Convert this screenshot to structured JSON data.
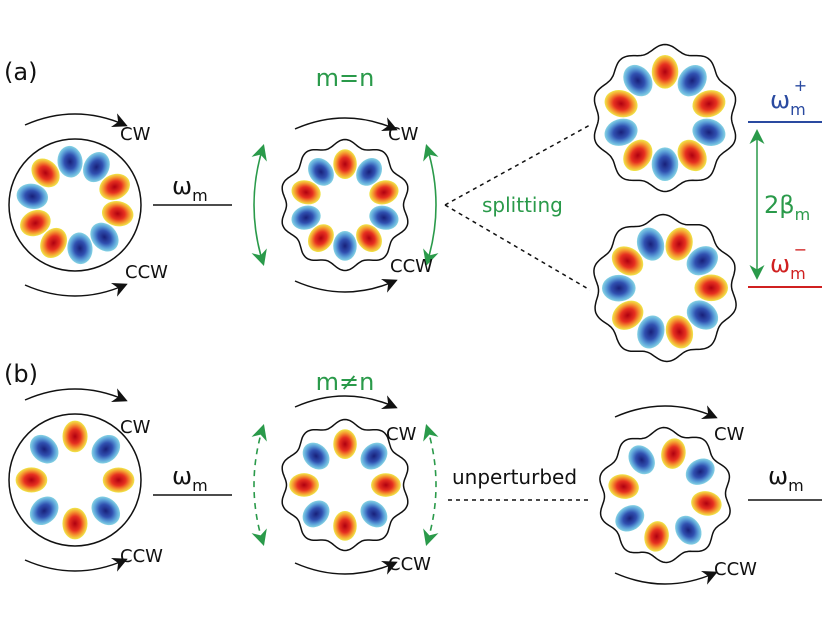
{
  "panel_a": {
    "label": "(a)",
    "left": {
      "cw": "CW",
      "ccw": "CCW",
      "frequency": {
        "symbol": "ω",
        "sub": "m"
      }
    },
    "middle": {
      "condition": "m=n",
      "cw": "CW",
      "ccw": "CCW"
    },
    "transition": "splitting",
    "upper": {
      "symbol": "ω",
      "sub": "m",
      "sup": "+"
    },
    "lower": {
      "symbol": "ω",
      "sub": "m",
      "sup": "−"
    },
    "gap": {
      "symbol": "2β",
      "sub": "m"
    }
  },
  "panel_b": {
    "label": "(b)",
    "left": {
      "cw": "CW",
      "ccw": "CCW",
      "frequency": {
        "symbol": "ω",
        "sub": "m"
      }
    },
    "middle": {
      "condition": "m≠n",
      "cw": "CW",
      "ccw": "CCW"
    },
    "transition": "unperturbed",
    "right": {
      "cw": "CW",
      "ccw": "CCW",
      "frequency": {
        "symbol": "ω",
        "sub": "m"
      }
    }
  }
}
